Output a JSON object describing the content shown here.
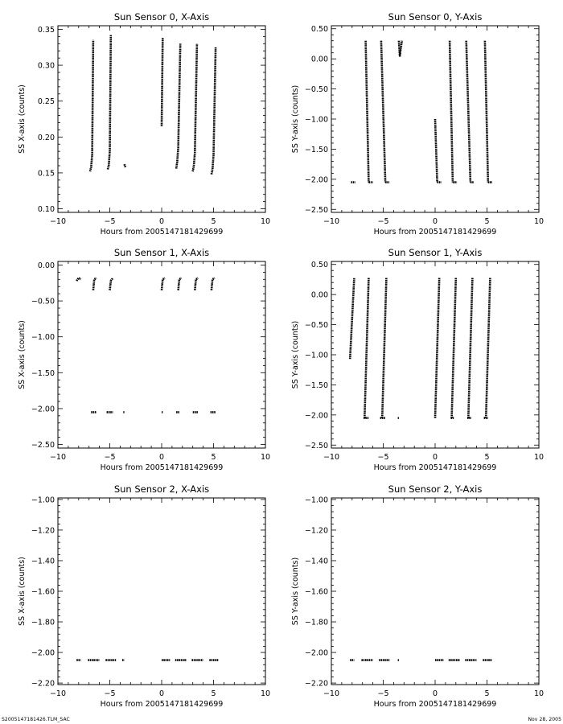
{
  "footer": {
    "left": "S2005147181426.TLM_SAC",
    "right": "Nov 28, 2005"
  },
  "chart_data": [
    {
      "type": "scatter",
      "title": "Sun Sensor 0, X-Axis",
      "xlabel": "Hours from 2005147181429699",
      "ylabel": "SS X-axis (counts)",
      "xlim": [
        -10,
        10
      ],
      "ylim": [
        0.095,
        0.355
      ],
      "xticks": [
        -10,
        -5,
        0,
        5,
        10
      ],
      "yticks": [
        0.1,
        0.15,
        0.2,
        0.25,
        0.3,
        0.35
      ],
      "ytick_labels": [
        "0.10",
        "0.15",
        "0.20",
        "0.25",
        "0.30",
        "0.35"
      ],
      "grid": false,
      "series": [
        {
          "kind": "line",
          "x": [
            -6.9,
            -6.8,
            -6.7,
            -6.6
          ],
          "y": [
            0.152,
            0.158,
            0.175,
            0.335
          ]
        },
        {
          "kind": "line",
          "x": [
            -5.2,
            -5.1,
            -5.0,
            -4.9
          ],
          "y": [
            0.155,
            0.16,
            0.18,
            0.342
          ]
        },
        {
          "kind": "line",
          "x": [
            -3.6,
            -3.5
          ],
          "y": [
            0.162,
            0.158
          ]
        },
        {
          "kind": "line",
          "x": [
            0.0,
            0.1
          ],
          "y": [
            0.215,
            0.338
          ]
        },
        {
          "kind": "line",
          "x": [
            1.4,
            1.5,
            1.6,
            1.8
          ],
          "y": [
            0.156,
            0.165,
            0.185,
            0.33
          ]
        },
        {
          "kind": "line",
          "x": [
            3.0,
            3.1,
            3.2,
            3.4
          ],
          "y": [
            0.152,
            0.16,
            0.178,
            0.33
          ]
        },
        {
          "kind": "line",
          "x": [
            4.8,
            4.9,
            5.0,
            5.2
          ],
          "y": [
            0.148,
            0.155,
            0.175,
            0.325
          ]
        }
      ]
    },
    {
      "type": "scatter",
      "title": "Sun Sensor 0, Y-Axis",
      "xlabel": "Hours from 2005147181429699",
      "ylabel": "SS Y-axis (counts)",
      "xlim": [
        -10,
        10
      ],
      "ylim": [
        -2.55,
        0.55
      ],
      "xticks": [
        -10,
        -5,
        0,
        5,
        10
      ],
      "yticks": [
        -2.5,
        -2.0,
        -1.5,
        -1.0,
        -0.5,
        0.0,
        0.5
      ],
      "ytick_labels": [
        "-2.50",
        "-2.00",
        "-1.50",
        "-1.00",
        "-0.50",
        "0.00",
        "0.50"
      ],
      "grid": false,
      "series": [
        {
          "kind": "line",
          "x": [
            -8.1,
            -7.7
          ],
          "y": [
            -2.05,
            -2.05
          ]
        },
        {
          "kind": "line",
          "x": [
            -6.7,
            -6.4
          ],
          "y": [
            0.3,
            -2.05
          ]
        },
        {
          "kind": "line",
          "x": [
            -6.4,
            -6.0
          ],
          "y": [
            -2.05,
            -2.05
          ]
        },
        {
          "kind": "line",
          "x": [
            -5.2,
            -4.8
          ],
          "y": [
            0.3,
            -2.05
          ]
        },
        {
          "kind": "line",
          "x": [
            -4.8,
            -4.4
          ],
          "y": [
            -2.05,
            -2.05
          ]
        },
        {
          "kind": "line",
          "x": [
            -3.5,
            -3.4,
            -3.2
          ],
          "y": [
            0.3,
            0.05,
            0.3
          ]
        },
        {
          "kind": "line",
          "x": [
            0.0,
            0.2
          ],
          "y": [
            -1.0,
            -2.05
          ]
        },
        {
          "kind": "line",
          "x": [
            0.2,
            0.6
          ],
          "y": [
            -2.05,
            -2.05
          ]
        },
        {
          "kind": "line",
          "x": [
            1.4,
            1.7
          ],
          "y": [
            0.3,
            -2.05
          ]
        },
        {
          "kind": "line",
          "x": [
            1.7,
            2.1
          ],
          "y": [
            -2.05,
            -2.05
          ]
        },
        {
          "kind": "line",
          "x": [
            3.0,
            3.4
          ],
          "y": [
            0.3,
            -2.05
          ]
        },
        {
          "kind": "line",
          "x": [
            3.4,
            3.7
          ],
          "y": [
            -2.05,
            -2.05
          ]
        },
        {
          "kind": "line",
          "x": [
            4.8,
            5.1
          ],
          "y": [
            0.3,
            -2.05
          ]
        },
        {
          "kind": "line",
          "x": [
            5.1,
            5.5
          ],
          "y": [
            -2.05,
            -2.05
          ]
        }
      ]
    },
    {
      "type": "scatter",
      "title": "Sun Sensor 1, X-Axis",
      "xlabel": "Hours from 2005147181429699",
      "ylabel": "SS X-axis (counts)",
      "xlim": [
        -10,
        10
      ],
      "ylim": [
        -2.55,
        0.05
      ],
      "xticks": [
        -10,
        -5,
        0,
        5,
        10
      ],
      "yticks": [
        -2.5,
        -2.0,
        -1.5,
        -1.0,
        -0.5,
        0.0
      ],
      "ytick_labels": [
        "-2.50",
        "-2.00",
        "-1.50",
        "-1.00",
        "-0.50",
        "0.00"
      ],
      "grid": false,
      "series": [
        {
          "kind": "line",
          "x": [
            -8.2,
            -8.0,
            -7.8
          ],
          "y": [
            -0.22,
            -0.18,
            -0.2
          ]
        },
        {
          "kind": "line",
          "x": [
            -6.6,
            -6.5,
            -6.3
          ],
          "y": [
            -0.35,
            -0.2,
            -0.18
          ]
        },
        {
          "kind": "line",
          "x": [
            -5.0,
            -4.9,
            -4.7
          ],
          "y": [
            -0.35,
            -0.22,
            -0.18
          ]
        },
        {
          "kind": "line",
          "x": [
            0.0,
            0.1,
            0.3
          ],
          "y": [
            -0.35,
            -0.2,
            -0.18
          ]
        },
        {
          "kind": "line",
          "x": [
            1.6,
            1.7,
            1.9
          ],
          "y": [
            -0.35,
            -0.2,
            -0.18
          ]
        },
        {
          "kind": "line",
          "x": [
            3.2,
            3.3,
            3.5
          ],
          "y": [
            -0.35,
            -0.2,
            -0.18
          ]
        },
        {
          "kind": "line",
          "x": [
            4.8,
            4.9,
            5.1
          ],
          "y": [
            -0.35,
            -0.2,
            -0.18
          ]
        },
        {
          "kind": "line",
          "x": [
            -6.8,
            -6.3
          ],
          "y": [
            -2.05,
            -2.05
          ]
        },
        {
          "kind": "line",
          "x": [
            -5.3,
            -4.7
          ],
          "y": [
            -2.05,
            -2.05
          ]
        },
        {
          "kind": "line",
          "x": [
            -3.7,
            -3.6
          ],
          "y": [
            -2.05,
            -2.05
          ]
        },
        {
          "kind": "line",
          "x": [
            0.0,
            0.1
          ],
          "y": [
            -2.05,
            -2.05
          ]
        },
        {
          "kind": "line",
          "x": [
            1.4,
            1.7
          ],
          "y": [
            -2.05,
            -2.05
          ]
        },
        {
          "kind": "line",
          "x": [
            3.0,
            3.5
          ],
          "y": [
            -2.05,
            -2.05
          ]
        },
        {
          "kind": "line",
          "x": [
            4.7,
            5.2
          ],
          "y": [
            -2.05,
            -2.05
          ]
        }
      ]
    },
    {
      "type": "scatter",
      "title": "Sun Sensor 1, Y-Axis",
      "xlabel": "Hours from 2005147181429699",
      "ylabel": "SS Y-axis (counts)",
      "xlim": [
        -10,
        10
      ],
      "ylim": [
        -2.55,
        0.55
      ],
      "xticks": [
        -10,
        -5,
        0,
        5,
        10
      ],
      "yticks": [
        -2.5,
        -2.0,
        -1.5,
        -1.0,
        -0.5,
        0.0,
        0.5
      ],
      "ytick_labels": [
        "-2.50",
        "-2.00",
        "-1.50",
        "-1.00",
        "-0.50",
        "0.00",
        "0.50"
      ],
      "grid": false,
      "series": [
        {
          "kind": "line",
          "x": [
            -8.2,
            -7.8
          ],
          "y": [
            -1.07,
            0.28
          ]
        },
        {
          "kind": "line",
          "x": [
            -6.8,
            -6.4
          ],
          "y": [
            -2.05,
            0.28
          ]
        },
        {
          "kind": "line",
          "x": [
            -5.1,
            -4.7
          ],
          "y": [
            -2.05,
            0.28
          ]
        },
        {
          "kind": "line",
          "x": [
            0.0,
            0.4
          ],
          "y": [
            -2.05,
            0.28
          ]
        },
        {
          "kind": "line",
          "x": [
            1.6,
            2.0
          ],
          "y": [
            -2.05,
            0.28
          ]
        },
        {
          "kind": "line",
          "x": [
            3.2,
            3.6
          ],
          "y": [
            -2.05,
            0.28
          ]
        },
        {
          "kind": "line",
          "x": [
            4.9,
            5.3
          ],
          "y": [
            -2.05,
            0.28
          ]
        },
        {
          "kind": "line",
          "x": [
            -6.9,
            -6.4
          ],
          "y": [
            -2.05,
            -2.05
          ]
        },
        {
          "kind": "line",
          "x": [
            -5.3,
            -4.8
          ],
          "y": [
            -2.05,
            -2.05
          ]
        },
        {
          "kind": "line",
          "x": [
            -3.6,
            -3.5
          ],
          "y": [
            -2.05,
            -2.05
          ]
        },
        {
          "kind": "line",
          "x": [
            1.5,
            1.8
          ],
          "y": [
            -2.05,
            -2.05
          ]
        },
        {
          "kind": "line",
          "x": [
            3.1,
            3.5
          ],
          "y": [
            -2.05,
            -2.05
          ]
        },
        {
          "kind": "line",
          "x": [
            4.7,
            5.1
          ],
          "y": [
            -2.05,
            -2.05
          ]
        }
      ]
    },
    {
      "type": "scatter",
      "title": "Sun Sensor 2, X-Axis",
      "xlabel": "Hours from 2005147181429699",
      "ylabel": "SS X-axis (counts)",
      "xlim": [
        -10,
        10
      ],
      "ylim": [
        -2.21,
        -0.99
      ],
      "xticks": [
        -10,
        -5,
        0,
        5,
        10
      ],
      "yticks": [
        -2.2,
        -2.0,
        -1.8,
        -1.6,
        -1.4,
        -1.2,
        -1.0
      ],
      "ytick_labels": [
        "-2.20",
        "-2.00",
        "-1.80",
        "-1.60",
        "-1.40",
        "-1.20",
        "-1.00"
      ],
      "grid": false,
      "series": [
        {
          "kind": "line",
          "x": [
            -8.2,
            -7.8
          ],
          "y": [
            -2.05,
            -2.05
          ]
        },
        {
          "kind": "line",
          "x": [
            -7.1,
            -6.0
          ],
          "y": [
            -2.05,
            -2.05
          ]
        },
        {
          "kind": "line",
          "x": [
            -5.4,
            -4.4
          ],
          "y": [
            -2.05,
            -2.05
          ]
        },
        {
          "kind": "line",
          "x": [
            -3.8,
            -3.6
          ],
          "y": [
            -2.05,
            -2.05
          ]
        },
        {
          "kind": "line",
          "x": [
            0.0,
            0.8
          ],
          "y": [
            -2.05,
            -2.05
          ]
        },
        {
          "kind": "line",
          "x": [
            1.3,
            2.4
          ],
          "y": [
            -2.05,
            -2.05
          ]
        },
        {
          "kind": "line",
          "x": [
            2.9,
            4.0
          ],
          "y": [
            -2.05,
            -2.05
          ]
        },
        {
          "kind": "line",
          "x": [
            4.6,
            5.5
          ],
          "y": [
            -2.05,
            -2.05
          ]
        }
      ]
    },
    {
      "type": "scatter",
      "title": "Sun Sensor 2, Y-Axis",
      "xlabel": "Hours from 2005147181429699",
      "ylabel": "SS Y-axis (counts)",
      "xlim": [
        -10,
        10
      ],
      "ylim": [
        -2.21,
        -0.99
      ],
      "xticks": [
        -10,
        -5,
        0,
        5,
        10
      ],
      "yticks": [
        -2.2,
        -2.0,
        -1.8,
        -1.6,
        -1.4,
        -1.2,
        -1.0
      ],
      "ytick_labels": [
        "-2.20",
        "-2.00",
        "-1.80",
        "-1.60",
        "-1.40",
        "-1.20",
        "-1.00"
      ],
      "grid": false,
      "series": [
        {
          "kind": "line",
          "x": [
            -8.2,
            -7.8
          ],
          "y": [
            -2.05,
            -2.05
          ]
        },
        {
          "kind": "line",
          "x": [
            -7.1,
            -6.0
          ],
          "y": [
            -2.05,
            -2.05
          ]
        },
        {
          "kind": "line",
          "x": [
            -5.4,
            -4.4
          ],
          "y": [
            -2.05,
            -2.05
          ]
        },
        {
          "kind": "line",
          "x": [
            -3.6,
            -3.5
          ],
          "y": [
            -2.05,
            -2.05
          ]
        },
        {
          "kind": "line",
          "x": [
            0.0,
            0.8
          ],
          "y": [
            -2.05,
            -2.05
          ]
        },
        {
          "kind": "line",
          "x": [
            1.3,
            2.4
          ],
          "y": [
            -2.05,
            -2.05
          ]
        },
        {
          "kind": "line",
          "x": [
            2.9,
            4.0
          ],
          "y": [
            -2.05,
            -2.05
          ]
        },
        {
          "kind": "line",
          "x": [
            4.6,
            5.5
          ],
          "y": [
            -2.05,
            -2.05
          ]
        }
      ]
    }
  ]
}
